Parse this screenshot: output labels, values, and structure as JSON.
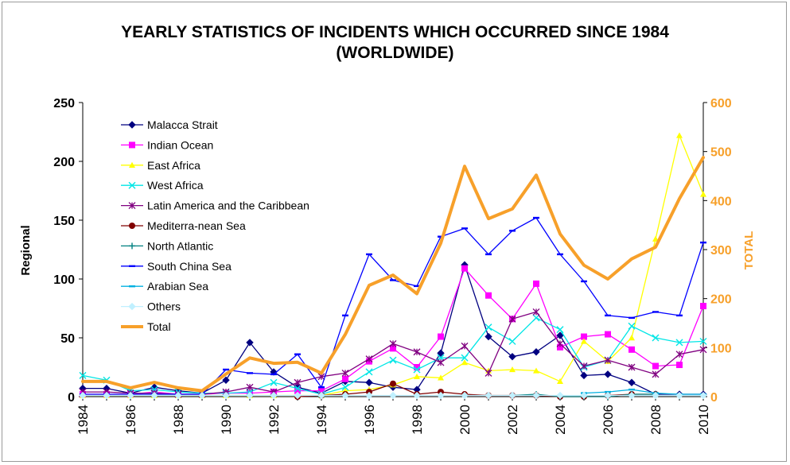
{
  "chart_data": {
    "type": "line",
    "title_line1": "YEARLY STATISTICS OF INCIDENTS WHICH OCCURRED SINCE 1984",
    "title_line2": "(WORLDWIDE)",
    "ylabel": "Regional",
    "y2label": "TOTAL",
    "ylim": [
      0,
      250
    ],
    "y2lim": [
      0,
      600
    ],
    "yticks": [
      0,
      50,
      100,
      150,
      200,
      250
    ],
    "y2ticks": [
      0,
      100,
      200,
      300,
      400,
      500,
      600
    ],
    "xticks": [
      1984,
      1986,
      1988,
      1990,
      1992,
      1994,
      1996,
      1998,
      2000,
      2002,
      2004,
      2006,
      2008,
      2010
    ],
    "x": [
      1984,
      1985,
      1986,
      1987,
      1988,
      1989,
      1990,
      1991,
      1992,
      1993,
      1994,
      1995,
      1996,
      1997,
      1998,
      1999,
      2000,
      2001,
      2002,
      2003,
      2004,
      2005,
      2006,
      2007,
      2008,
      2009,
      2010
    ],
    "grid": false,
    "legend_position": "top-left",
    "series": [
      {
        "name": "Malacca Strait",
        "color": "#000080",
        "marker": "diamond",
        "axis": "left",
        "values": [
          7,
          7,
          3,
          8,
          5,
          3,
          14,
          46,
          21,
          8,
          3,
          13,
          12,
          8,
          6,
          37,
          112,
          51,
          34,
          38,
          52,
          18,
          19,
          12,
          2,
          2,
          2
        ]
      },
      {
        "name": "Indian Ocean",
        "color": "#ff00ff",
        "marker": "square",
        "axis": "left",
        "values": [
          2,
          2,
          2,
          4,
          2,
          2,
          3,
          3,
          4,
          5,
          5,
          15,
          30,
          41,
          25,
          51,
          109,
          86,
          66,
          96,
          42,
          51,
          53,
          40,
          26,
          27,
          77
        ]
      },
      {
        "name": "East Africa",
        "color": "#ffff00",
        "marker": "triangle",
        "axis": "left",
        "values": [
          1,
          1,
          1,
          1,
          1,
          1,
          1,
          1,
          1,
          1,
          1,
          5,
          6,
          10,
          17,
          16,
          29,
          22,
          23,
          22,
          13,
          47,
          30,
          50,
          134,
          222,
          172
        ]
      },
      {
        "name": "West Africa",
        "color": "#00e6e6",
        "marker": "x",
        "axis": "left",
        "values": [
          18,
          14,
          5,
          6,
          4,
          3,
          3,
          4,
          12,
          7,
          2,
          8,
          21,
          31,
          23,
          33,
          33,
          59,
          47,
          67,
          57,
          25,
          31,
          60,
          50,
          46,
          47
        ]
      },
      {
        "name": "Latin America and the Caribbean",
        "color": "#800080",
        "marker": "star",
        "axis": "left",
        "values": [
          4,
          4,
          3,
          3,
          2,
          2,
          4,
          8,
          4,
          12,
          17,
          20,
          32,
          45,
          38,
          29,
          43,
          20,
          66,
          72,
          45,
          26,
          31,
          25,
          19,
          36,
          40
        ]
      },
      {
        "name": "Mediterra-nean Sea",
        "color": "#800000",
        "marker": "circle",
        "axis": "left",
        "values": [
          null,
          null,
          null,
          null,
          null,
          null,
          null,
          null,
          null,
          0,
          1,
          2,
          4,
          11,
          2,
          4,
          2,
          1,
          1,
          1,
          0,
          0,
          1,
          2,
          2,
          null,
          null
        ]
      },
      {
        "name": "North Atlantic",
        "color": "#008080",
        "marker": "plus",
        "axis": "left",
        "values": [
          null,
          null,
          null,
          null,
          null,
          null,
          null,
          null,
          null,
          null,
          null,
          null,
          null,
          null,
          null,
          null,
          null,
          null,
          1,
          2,
          0,
          0,
          0,
          2,
          2,
          null,
          null
        ]
      },
      {
        "name": "South China Sea",
        "color": "#0000ff",
        "marker": "dash",
        "axis": "left",
        "values": [
          2,
          2,
          2,
          2,
          2,
          2,
          23,
          20,
          19,
          36,
          8,
          69,
          121,
          99,
          94,
          136,
          143,
          121,
          141,
          152,
          121,
          98,
          69,
          67,
          72,
          69,
          131
        ]
      },
      {
        "name": "Arabian Sea",
        "color": "#00b0e0",
        "marker": "dash",
        "axis": "left",
        "values": [
          null,
          null,
          null,
          null,
          null,
          null,
          null,
          null,
          null,
          null,
          null,
          null,
          null,
          null,
          null,
          null,
          null,
          null,
          null,
          null,
          null,
          3,
          4,
          6,
          3,
          2,
          2
        ]
      },
      {
        "name": "Others",
        "color": "#c0f0ff",
        "marker": "diamond",
        "axis": "left",
        "values": [
          1,
          1,
          1,
          1,
          1,
          1,
          1,
          1,
          1,
          1,
          1,
          1,
          1,
          1,
          1,
          1,
          1,
          1,
          1,
          1,
          1,
          1,
          1,
          1,
          1,
          1,
          1
        ]
      },
      {
        "name": "Total",
        "color": "#f7a02a",
        "marker": "none",
        "axis": "right",
        "values": [
          31,
          31,
          18,
          29,
          18,
          12,
          46,
          79,
          68,
          70,
          48,
          127,
          227,
          248,
          210,
          313,
          470,
          363,
          383,
          452,
          332,
          268,
          240,
          281,
          305,
          404,
          488
        ]
      }
    ]
  }
}
